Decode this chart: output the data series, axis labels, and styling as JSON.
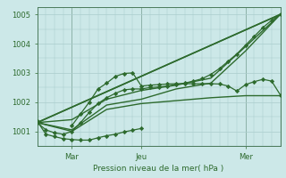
{
  "xlabel": "Pression niveau de la mer( hPa )",
  "bg_color": "#cce8e8",
  "grid_color": "#aacccc",
  "line_color": "#2d6a2d",
  "vline_color": "#4a7a5a",
  "ylim": [
    1000.5,
    1005.25
  ],
  "xlim": [
    0,
    168
  ],
  "xtick_positions": [
    24,
    72,
    144
  ],
  "xtick_labels": [
    "Mar",
    "Jeu",
    "Mer"
  ],
  "ytick_positions": [
    1001,
    1002,
    1003,
    1004,
    1005
  ],
  "ytick_labels": [
    "1001",
    "1002",
    "1003",
    "1004",
    "1005"
  ],
  "vline_positions": [
    24,
    72,
    144
  ],
  "series": [
    {
      "x": [
        0,
        6,
        12,
        18,
        24,
        30,
        36,
        42,
        48,
        54,
        60,
        66,
        72,
        78,
        84,
        90,
        96,
        102,
        108,
        114,
        120,
        126,
        132,
        138,
        144,
        150,
        156,
        162,
        168
      ],
      "y": [
        1001.3,
        1001.05,
        1000.95,
        1000.9,
        1001.0,
        1001.3,
        1001.65,
        1001.95,
        1002.15,
        1002.3,
        1002.42,
        1002.45,
        1002.45,
        1002.5,
        1002.52,
        1002.55,
        1002.6,
        1002.65,
        1002.72,
        1002.8,
        1002.95,
        1003.15,
        1003.4,
        1003.65,
        1003.95,
        1004.25,
        1004.55,
        1004.8,
        1005.0
      ],
      "marker": "D",
      "markersize": 2.2,
      "linewidth": 0.9
    },
    {
      "x": [
        0,
        168
      ],
      "y": [
        1001.3,
        1005.0
      ],
      "marker": null,
      "markersize": 0,
      "linewidth": 1.0
    },
    {
      "x": [
        0,
        168
      ],
      "y": [
        1001.3,
        1005.0
      ],
      "marker": null,
      "markersize": 0,
      "linewidth": 1.2
    },
    {
      "x": [
        24,
        30,
        36,
        42,
        48,
        54,
        60,
        66,
        72,
        78,
        84,
        90,
        96,
        102,
        108,
        114,
        120,
        126,
        132,
        138,
        144,
        150,
        156,
        162,
        168
      ],
      "y": [
        1001.2,
        1001.6,
        1002.0,
        1002.45,
        1002.65,
        1002.88,
        1002.98,
        1003.0,
        1002.55,
        1002.58,
        1002.6,
        1002.62,
        1002.63,
        1002.63,
        1002.63,
        1002.63,
        1002.63,
        1002.62,
        1002.55,
        1002.38,
        1002.6,
        1002.7,
        1002.78,
        1002.72,
        1002.25
      ],
      "marker": "D",
      "markersize": 2.2,
      "linewidth": 0.9
    },
    {
      "x": [
        0,
        24,
        48,
        72,
        96,
        120,
        144,
        168
      ],
      "y": [
        1001.3,
        1001.05,
        1001.9,
        1002.1,
        1002.45,
        1002.65,
        1003.75,
        1005.0
      ],
      "marker": null,
      "markersize": 0,
      "linewidth": 1.0
    },
    {
      "x": [
        0,
        24,
        48,
        72,
        96,
        120,
        144,
        168
      ],
      "y": [
        1001.3,
        1001.4,
        1002.1,
        1002.4,
        1002.58,
        1002.82,
        1003.9,
        1005.0
      ],
      "marker": null,
      "markersize": 0,
      "linewidth": 1.0
    },
    {
      "x": [
        0,
        6,
        12,
        18,
        24,
        30,
        36,
        42,
        48,
        54,
        60,
        66,
        72
      ],
      "y": [
        1001.35,
        1000.9,
        1000.82,
        1000.75,
        1000.72,
        1000.7,
        1000.7,
        1000.78,
        1000.85,
        1000.9,
        1000.98,
        1001.04,
        1001.1
      ],
      "marker": "D",
      "markersize": 2.2,
      "linewidth": 0.9
    },
    {
      "x": [
        0,
        24,
        48,
        72,
        96,
        120,
        144,
        168
      ],
      "y": [
        1001.3,
        1001.0,
        1001.75,
        1001.95,
        1002.05,
        1002.15,
        1002.22,
        1002.22
      ],
      "marker": null,
      "markersize": 0,
      "linewidth": 1.0
    }
  ]
}
